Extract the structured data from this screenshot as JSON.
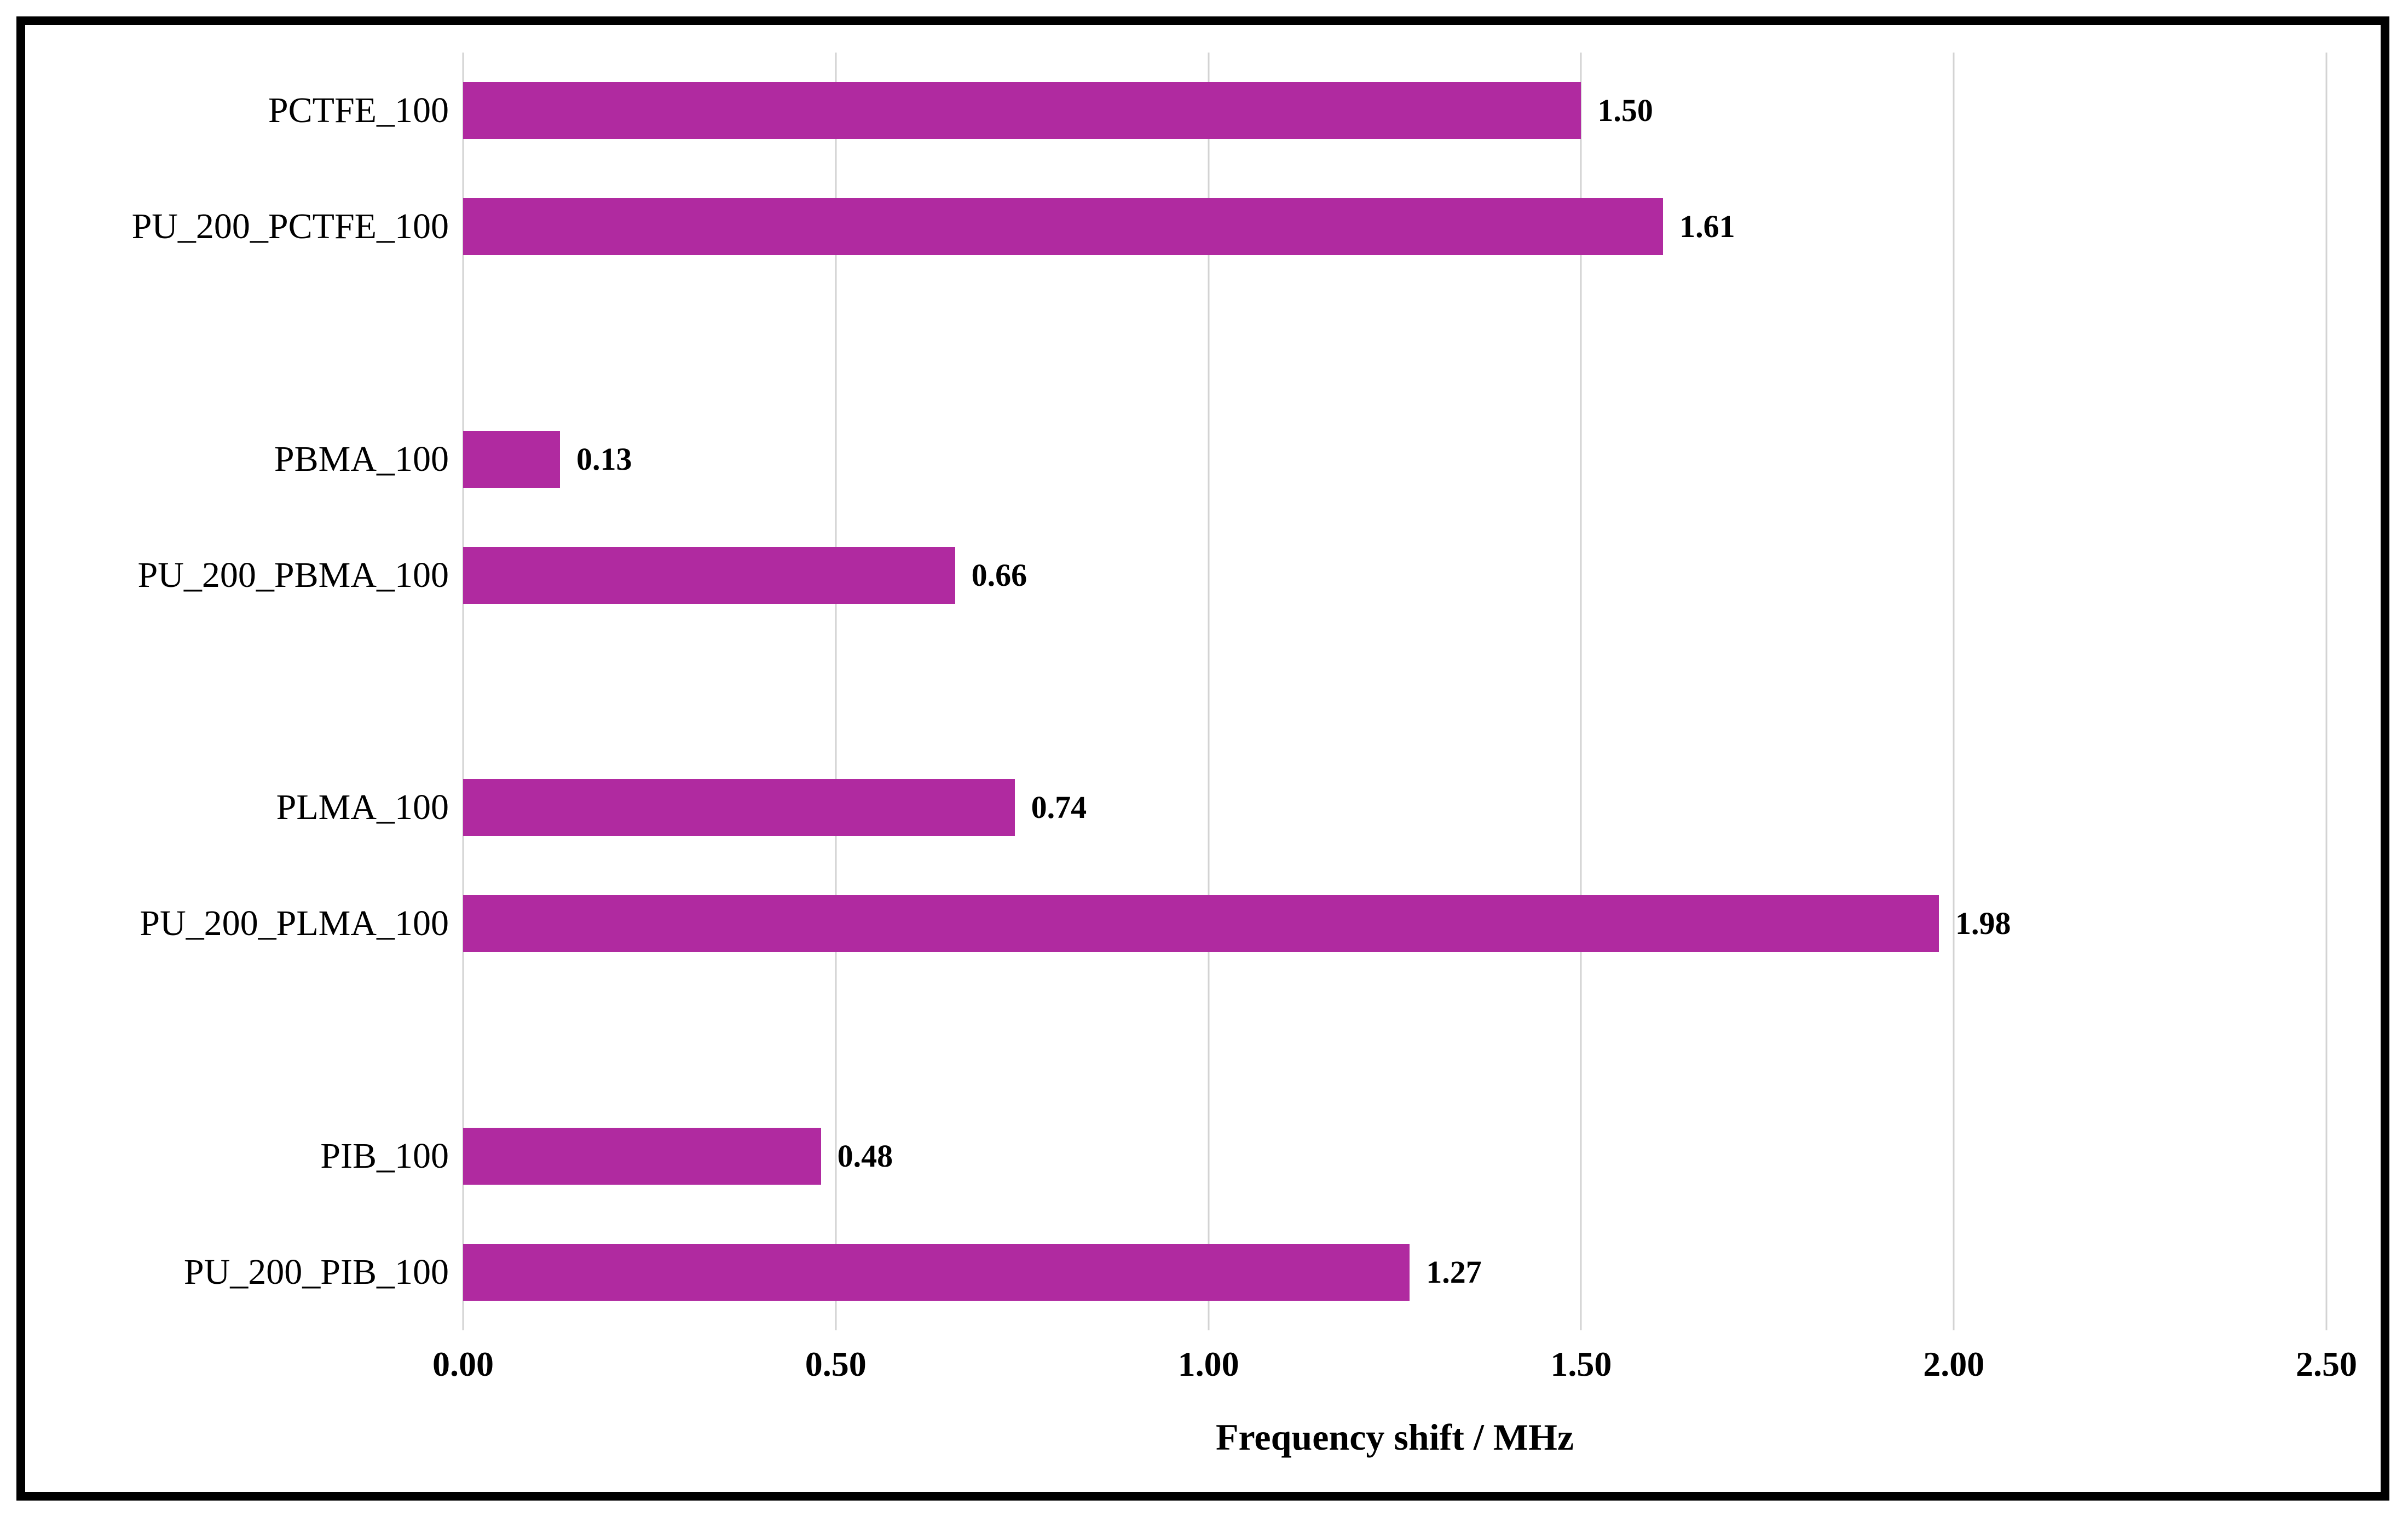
{
  "chart_data": {
    "type": "bar",
    "orientation": "horizontal",
    "title": "",
    "xlabel": "Frequency shift / MHz",
    "ylabel": "",
    "xlim": [
      0,
      2.5
    ],
    "x_ticks": [
      "0.00",
      "0.50",
      "1.00",
      "1.50",
      "2.00",
      "2.50"
    ],
    "grid": true,
    "legend_position": "none",
    "bar_color": "#b02aa0",
    "gridline_color": "#d3d3d3",
    "categories": [
      "PCTFE_100",
      "PU_200_PCTFE_100",
      "",
      "PBMA_100",
      "PU_200_PBMA_100",
      "",
      "PLMA_100",
      "PU_200_PLMA_100",
      "",
      "PIB_100",
      "PU_200_PIB_100"
    ],
    "values": [
      1.5,
      1.61,
      null,
      0.13,
      0.66,
      null,
      0.74,
      1.98,
      null,
      0.48,
      1.27
    ],
    "value_labels": [
      "1.50",
      "1.61",
      "",
      "0.13",
      "0.66",
      "",
      "0.74",
      "1.98",
      "",
      "0.48",
      "1.27"
    ]
  }
}
